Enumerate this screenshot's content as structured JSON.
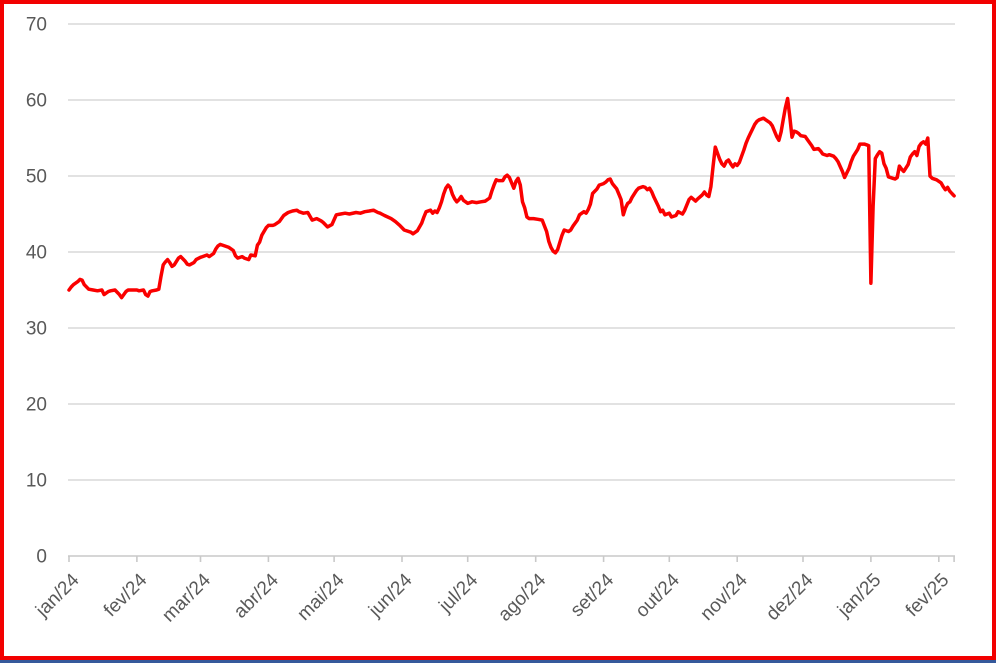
{
  "theme": {
    "background": "#FFFFFF",
    "frame_border_color": "#F20000",
    "bottom_strip_color": "#35599B",
    "grid_color": "#D9D9D9",
    "axis_color": "#C9C9C9",
    "label_color": "#595959",
    "series_color": "#FA0000"
  },
  "chart_data": {
    "type": "line",
    "grid": "horizontal",
    "legend": "none",
    "y_axis": {
      "min": 0,
      "max": 70,
      "ticks": [
        0,
        10,
        20,
        30,
        40,
        50,
        60,
        70
      ]
    },
    "x_axis": {
      "unit": "day offset from start of jan/24",
      "start_day": 0,
      "end_day": 404,
      "tick_labels": [
        "jan/24",
        "fev/24",
        "mar/24",
        "abr/24",
        "mai/24",
        "jun/24",
        "jul/24",
        "ago/24",
        "set/24",
        "out/24",
        "nov/24",
        "dez/24",
        "jan/25",
        "fev/25"
      ],
      "tick_day_offsets": [
        0,
        31,
        60,
        91,
        121,
        152,
        182,
        213,
        244,
        274,
        305,
        335,
        366,
        397
      ]
    },
    "series": [
      {
        "color": "#FA0000",
        "points": [
          [
            0,
            35.0
          ],
          [
            1,
            35.4
          ],
          [
            2,
            35.7
          ],
          [
            4,
            36.1
          ],
          [
            5,
            36.4
          ],
          [
            6,
            36.3
          ],
          [
            7,
            35.7
          ],
          [
            9,
            35.1
          ],
          [
            11,
            35.0
          ],
          [
            13,
            34.9
          ],
          [
            15,
            35.0
          ],
          [
            16,
            34.4
          ],
          [
            18,
            34.8
          ],
          [
            19,
            34.9
          ],
          [
            21,
            35.0
          ],
          [
            23,
            34.4
          ],
          [
            24,
            34.0
          ],
          [
            26,
            34.8
          ],
          [
            27,
            35.0
          ],
          [
            29,
            35.0
          ],
          [
            31,
            35.0
          ],
          [
            32,
            34.9
          ],
          [
            34,
            35.0
          ],
          [
            35,
            34.4
          ],
          [
            36,
            34.2
          ],
          [
            37,
            34.8
          ],
          [
            38,
            34.9
          ],
          [
            40,
            35.0
          ],
          [
            41,
            35.1
          ],
          [
            42,
            36.8
          ],
          [
            43,
            38.3
          ],
          [
            44,
            38.7
          ],
          [
            45,
            39.0
          ],
          [
            46,
            38.6
          ],
          [
            47,
            38.1
          ],
          [
            48,
            38.3
          ],
          [
            50,
            39.2
          ],
          [
            51,
            39.4
          ],
          [
            53,
            38.8
          ],
          [
            54,
            38.4
          ],
          [
            55,
            38.3
          ],
          [
            57,
            38.6
          ],
          [
            58,
            39.0
          ],
          [
            60,
            39.3
          ],
          [
            61,
            39.4
          ],
          [
            63,
            39.6
          ],
          [
            64,
            39.4
          ],
          [
            66,
            39.8
          ],
          [
            67,
            40.4
          ],
          [
            68,
            40.8
          ],
          [
            69,
            41.0
          ],
          [
            71,
            40.8
          ],
          [
            73,
            40.6
          ],
          [
            75,
            40.2
          ],
          [
            76,
            39.5
          ],
          [
            77,
            39.2
          ],
          [
            79,
            39.4
          ],
          [
            80,
            39.2
          ],
          [
            82,
            39.0
          ],
          [
            83,
            39.6
          ],
          [
            85,
            39.5
          ],
          [
            86,
            40.9
          ],
          [
            87,
            41.3
          ],
          [
            88,
            42.2
          ],
          [
            90,
            43.2
          ],
          [
            91,
            43.5
          ],
          [
            93,
            43.5
          ],
          [
            94,
            43.6
          ],
          [
            96,
            44.0
          ],
          [
            98,
            44.8
          ],
          [
            100,
            45.2
          ],
          [
            102,
            45.4
          ],
          [
            104,
            45.5
          ],
          [
            105,
            45.3
          ],
          [
            107,
            45.1
          ],
          [
            109,
            45.2
          ],
          [
            111,
            44.2
          ],
          [
            113,
            44.4
          ],
          [
            115,
            44.1
          ],
          [
            116,
            43.9
          ],
          [
            118,
            43.3
          ],
          [
            120,
            43.6
          ],
          [
            122,
            44.9
          ],
          [
            124,
            45.0
          ],
          [
            126,
            45.1
          ],
          [
            128,
            45.0
          ],
          [
            131,
            45.2
          ],
          [
            133,
            45.1
          ],
          [
            135,
            45.3
          ],
          [
            137,
            45.4
          ],
          [
            139,
            45.5
          ],
          [
            141,
            45.2
          ],
          [
            142,
            45.1
          ],
          [
            144,
            44.8
          ],
          [
            147,
            44.4
          ],
          [
            149,
            44.0
          ],
          [
            151,
            43.5
          ],
          [
            153,
            42.9
          ],
          [
            156,
            42.6
          ],
          [
            157,
            42.4
          ],
          [
            159,
            42.8
          ],
          [
            161,
            43.8
          ],
          [
            162,
            44.6
          ],
          [
            163,
            45.3
          ],
          [
            165,
            45.5
          ],
          [
            166,
            45.1
          ],
          [
            167,
            45.4
          ],
          [
            168,
            45.2
          ],
          [
            169,
            45.8
          ],
          [
            170,
            46.6
          ],
          [
            171,
            47.6
          ],
          [
            172,
            48.4
          ],
          [
            173,
            48.8
          ],
          [
            174,
            48.5
          ],
          [
            175,
            47.6
          ],
          [
            176,
            47.0
          ],
          [
            177,
            46.6
          ],
          [
            178,
            46.9
          ],
          [
            179,
            47.3
          ],
          [
            180,
            46.8
          ],
          [
            181,
            46.6
          ],
          [
            182,
            46.4
          ],
          [
            184,
            46.6
          ],
          [
            186,
            46.5
          ],
          [
            188,
            46.6
          ],
          [
            190,
            46.7
          ],
          [
            192,
            47.1
          ],
          [
            193,
            48.0
          ],
          [
            194,
            48.8
          ],
          [
            195,
            49.5
          ],
          [
            196,
            49.4
          ],
          [
            198,
            49.4
          ],
          [
            199,
            49.9
          ],
          [
            200,
            50.1
          ],
          [
            201,
            49.8
          ],
          [
            202,
            49.1
          ],
          [
            203,
            48.4
          ],
          [
            204,
            49.3
          ],
          [
            205,
            49.7
          ],
          [
            206,
            48.8
          ],
          [
            207,
            46.6
          ],
          [
            208,
            45.8
          ],
          [
            209,
            44.6
          ],
          [
            210,
            44.4
          ],
          [
            212,
            44.4
          ],
          [
            214,
            44.3
          ],
          [
            216,
            44.2
          ],
          [
            218,
            42.7
          ],
          [
            219,
            41.4
          ],
          [
            220,
            40.6
          ],
          [
            221,
            40.1
          ],
          [
            222,
            39.9
          ],
          [
            223,
            40.3
          ],
          [
            225,
            42.2
          ],
          [
            226,
            42.9
          ],
          [
            228,
            42.7
          ],
          [
            229,
            42.9
          ],
          [
            230,
            43.4
          ],
          [
            232,
            44.2
          ],
          [
            233,
            44.9
          ],
          [
            235,
            45.3
          ],
          [
            236,
            45.1
          ],
          [
            237,
            45.6
          ],
          [
            238,
            46.3
          ],
          [
            239,
            47.7
          ],
          [
            241,
            48.3
          ],
          [
            242,
            48.8
          ],
          [
            244,
            49.0
          ],
          [
            245,
            49.2
          ],
          [
            246,
            49.5
          ],
          [
            247,
            49.6
          ],
          [
            248,
            49.0
          ],
          [
            250,
            48.3
          ],
          [
            251,
            47.6
          ],
          [
            252,
            46.9
          ],
          [
            253,
            44.9
          ],
          [
            254,
            45.8
          ],
          [
            255,
            46.4
          ],
          [
            256,
            46.6
          ],
          [
            257,
            47.2
          ],
          [
            259,
            48.1
          ],
          [
            260,
            48.4
          ],
          [
            262,
            48.6
          ],
          [
            263,
            48.5
          ],
          [
            264,
            48.2
          ],
          [
            265,
            48.4
          ],
          [
            266,
            47.9
          ],
          [
            267,
            47.2
          ],
          [
            269,
            46.0
          ],
          [
            270,
            45.3
          ],
          [
            271,
            45.5
          ],
          [
            272,
            44.9
          ],
          [
            274,
            45.1
          ],
          [
            275,
            44.6
          ],
          [
            277,
            44.8
          ],
          [
            278,
            45.3
          ],
          [
            280,
            45.0
          ],
          [
            281,
            45.5
          ],
          [
            283,
            46.9
          ],
          [
            284,
            47.2
          ],
          [
            286,
            46.7
          ],
          [
            287,
            47.0
          ],
          [
            289,
            47.5
          ],
          [
            290,
            47.9
          ],
          [
            291,
            47.5
          ],
          [
            292,
            47.3
          ],
          [
            293,
            48.6
          ],
          [
            294,
            51.3
          ],
          [
            295,
            53.8
          ],
          [
            296,
            53.0
          ],
          [
            297,
            52.2
          ],
          [
            298,
            51.6
          ],
          [
            299,
            51.3
          ],
          [
            300,
            51.9
          ],
          [
            301,
            52.1
          ],
          [
            302,
            51.6
          ],
          [
            303,
            51.2
          ],
          [
            304,
            51.6
          ],
          [
            305,
            51.4
          ],
          [
            306,
            51.8
          ],
          [
            307,
            52.6
          ],
          [
            308,
            53.4
          ],
          [
            309,
            54.3
          ],
          [
            310,
            55.0
          ],
          [
            311,
            55.6
          ],
          [
            312,
            56.2
          ],
          [
            313,
            56.8
          ],
          [
            314,
            57.2
          ],
          [
            315,
            57.4
          ],
          [
            316,
            57.5
          ],
          [
            317,
            57.6
          ],
          [
            318,
            57.4
          ],
          [
            319,
            57.2
          ],
          [
            320,
            57.0
          ],
          [
            321,
            56.6
          ],
          [
            322,
            55.9
          ],
          [
            323,
            55.2
          ],
          [
            324,
            54.7
          ],
          [
            325,
            55.8
          ],
          [
            326,
            57.4
          ],
          [
            327,
            59.0
          ],
          [
            328,
            60.2
          ],
          [
            329,
            57.8
          ],
          [
            330,
            55.1
          ],
          [
            331,
            55.9
          ],
          [
            332,
            55.8
          ],
          [
            333,
            55.6
          ],
          [
            334,
            55.3
          ],
          [
            336,
            55.2
          ],
          [
            337,
            54.8
          ],
          [
            339,
            54.0
          ],
          [
            340,
            53.5
          ],
          [
            342,
            53.6
          ],
          [
            343,
            53.3
          ],
          [
            344,
            52.9
          ],
          [
            346,
            52.7
          ],
          [
            347,
            52.8
          ],
          [
            349,
            52.6
          ],
          [
            350,
            52.3
          ],
          [
            351,
            51.9
          ],
          [
            353,
            50.6
          ],
          [
            354,
            49.8
          ],
          [
            356,
            51.0
          ],
          [
            357,
            51.9
          ],
          [
            358,
            52.6
          ],
          [
            360,
            53.5
          ],
          [
            361,
            54.2
          ],
          [
            363,
            54.2
          ],
          [
            364,
            54.1
          ],
          [
            365,
            54.0
          ],
          [
            366,
            35.9
          ],
          [
            367,
            46.0
          ],
          [
            368,
            52.3
          ],
          [
            369,
            52.8
          ],
          [
            370,
            53.2
          ],
          [
            371,
            53.0
          ],
          [
            372,
            51.6
          ],
          [
            373,
            51.0
          ],
          [
            374,
            49.9
          ],
          [
            376,
            49.7
          ],
          [
            377,
            49.6
          ],
          [
            378,
            49.8
          ],
          [
            379,
            51.3
          ],
          [
            380,
            50.9
          ],
          [
            381,
            50.6
          ],
          [
            383,
            51.5
          ],
          [
            384,
            52.5
          ],
          [
            385,
            52.9
          ],
          [
            386,
            53.2
          ],
          [
            387,
            52.7
          ],
          [
            388,
            53.9
          ],
          [
            389,
            54.3
          ],
          [
            390,
            54.5
          ],
          [
            391,
            54.2
          ],
          [
            392,
            55.0
          ],
          [
            393,
            50.0
          ],
          [
            394,
            49.7
          ],
          [
            396,
            49.5
          ],
          [
            397,
            49.3
          ],
          [
            398,
            49.1
          ],
          [
            399,
            48.6
          ],
          [
            400,
            48.2
          ],
          [
            401,
            48.5
          ],
          [
            402,
            48.0
          ],
          [
            403,
            47.7
          ],
          [
            404,
            47.4
          ]
        ]
      }
    ]
  }
}
